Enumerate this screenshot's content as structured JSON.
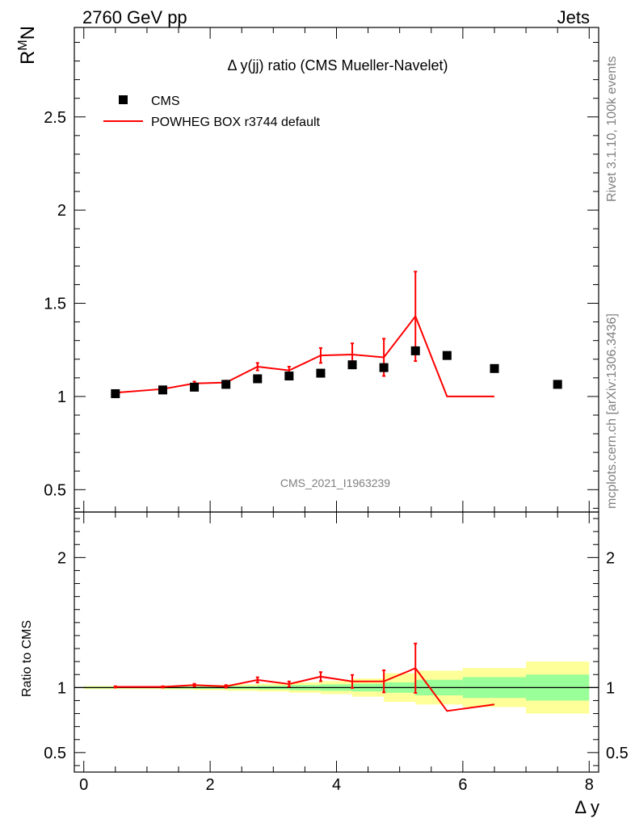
{
  "header": {
    "left": "2760 GeV pp",
    "right": "Jets"
  },
  "side_labels": {
    "rivet": "Rivet 3.1.10,  100k events",
    "mcplots": "mcplots.cern.ch [arXiv:1306.3436]"
  },
  "colors": {
    "mc": "#ff0000",
    "data": "#000000",
    "band_inner": "#99ff99",
    "band_outer": "#ffff99"
  },
  "chart_data": {
    "type": "scatter",
    "title": "Δ y(jj) ratio (CMS Mueller-Navelet)",
    "watermark": "CMS_2021_I1963239",
    "xlabel": "Δ y",
    "ylabel": "R^M_N",
    "ratio_ylabel": "Ratio to CMS",
    "xlim": [
      -0.15,
      8.15
    ],
    "ylim": [
      0.38,
      2.98
    ],
    "ratio_ylim": [
      0.35,
      2.35
    ],
    "x_ticks": [
      0,
      2,
      4,
      6,
      8
    ],
    "y_ticks": [
      0.5,
      1,
      1.5,
      2,
      2.5
    ],
    "ratio_ticks": [
      0.5,
      1,
      2
    ],
    "legend": [
      {
        "name": "CMS",
        "symbol": "square"
      },
      {
        "name": "POWHEG BOX r3744 default",
        "symbol": "line"
      }
    ],
    "data": {
      "name": "CMS",
      "x": [
        0.5,
        1.25,
        1.75,
        2.25,
        2.75,
        3.25,
        3.75,
        4.25,
        4.75,
        5.25,
        5.75,
        6.5,
        7.5
      ],
      "y": [
        1.015,
        1.035,
        1.05,
        1.065,
        1.095,
        1.11,
        1.125,
        1.17,
        1.155,
        1.245,
        1.22,
        1.15,
        1.065
      ]
    },
    "mc": {
      "name": "POWHEG BOX r3744 default",
      "x": [
        0.5,
        1.25,
        1.75,
        2.25,
        2.75,
        3.25,
        3.75,
        4.25,
        4.75,
        5.25,
        5.75,
        6.5
      ],
      "y": [
        1.02,
        1.04,
        1.07,
        1.075,
        1.16,
        1.14,
        1.22,
        1.225,
        1.21,
        1.43,
        1.0,
        1.0
      ],
      "err": [
        0.005,
        0.005,
        0.01,
        0.01,
        0.02,
        0.02,
        0.04,
        0.06,
        0.1,
        0.24,
        0,
        0
      ]
    },
    "ratio": {
      "x": [
        0.5,
        1.25,
        1.75,
        2.25,
        2.75,
        3.25,
        3.75,
        4.25,
        4.75,
        5.25,
        5.75,
        6.5
      ],
      "y": [
        1.005,
        1.005,
        1.019,
        1.009,
        1.059,
        1.027,
        1.084,
        1.047,
        1.048,
        1.149,
        0.82,
        0.87
      ],
      "err": [
        0.005,
        0.005,
        0.01,
        0.01,
        0.02,
        0.02,
        0.035,
        0.05,
        0.085,
        0.19,
        0,
        0
      ]
    },
    "uncertainty_bands": {
      "bins": [
        [
          0,
          0.75
        ],
        [
          0.75,
          1.25
        ],
        [
          1.25,
          1.75
        ],
        [
          1.75,
          2.25
        ],
        [
          2.25,
          2.75
        ],
        [
          2.75,
          3.25
        ],
        [
          3.25,
          3.75
        ],
        [
          3.75,
          4.25
        ],
        [
          4.25,
          4.75
        ],
        [
          4.75,
          5.25
        ],
        [
          5.25,
          6.0
        ],
        [
          6.0,
          7.0
        ],
        [
          7.0,
          8.0
        ]
      ],
      "inner": [
        0.006,
        0.006,
        0.008,
        0.01,
        0.012,
        0.015,
        0.02,
        0.025,
        0.03,
        0.04,
        0.06,
        0.08,
        0.1
      ],
      "outer": [
        0.012,
        0.012,
        0.015,
        0.02,
        0.025,
        0.03,
        0.04,
        0.05,
        0.07,
        0.11,
        0.13,
        0.15,
        0.2
      ]
    }
  }
}
